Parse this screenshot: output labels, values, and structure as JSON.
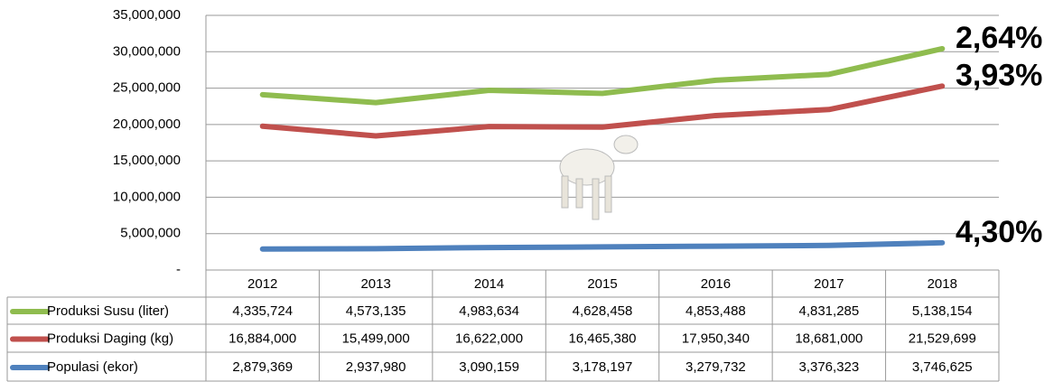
{
  "chart_data": {
    "type": "line",
    "stacked": true,
    "categories": [
      "2012",
      "2013",
      "2014",
      "2015",
      "2016",
      "2017",
      "2018"
    ],
    "series": [
      {
        "name": "Produksi Susu (liter)",
        "color": "#8fbc4f",
        "values": [
          4335724,
          4573135,
          4983634,
          4628458,
          4853488,
          4831285,
          5138154
        ],
        "value_labels": [
          "4,335,724",
          "4,573,135",
          "4,983,634",
          "4,628,458",
          "4,853,488",
          "4,831,285",
          "5,138,154"
        ],
        "annotation": "2,64%"
      },
      {
        "name": "Produksi Daging (kg)",
        "color": "#c0504d",
        "values": [
          16884000,
          15499000,
          16622000,
          16465380,
          17950340,
          18681000,
          21529699
        ],
        "value_labels": [
          "16,884,000",
          "15,499,000",
          "16,622,000",
          "16,465,380",
          "17,950,340",
          "18,681,000",
          "21,529,699"
        ],
        "annotation": "3,93%"
      },
      {
        "name": "Populasi (ekor)",
        "color": "#4f81bd",
        "values": [
          2879369,
          2937980,
          3090159,
          3178197,
          3279732,
          3376323,
          3746625
        ],
        "value_labels": [
          "2,879,369",
          "2,937,980",
          "3,090,159",
          "3,178,197",
          "3,279,732",
          "3,376,323",
          "3,746,625"
        ],
        "annotation": "4,30%"
      }
    ],
    "ylim": [
      0,
      35000000
    ],
    "yticks": [
      {
        "value": 0,
        "label": "-"
      },
      {
        "value": 5000000,
        "label": "5,000,000"
      },
      {
        "value": 10000000,
        "label": "10,000,000"
      },
      {
        "value": 15000000,
        "label": "15,000,000"
      },
      {
        "value": 20000000,
        "label": "20,000,000"
      },
      {
        "value": 25000000,
        "label": "25,000,000"
      },
      {
        "value": 30000000,
        "label": "30,000,000"
      },
      {
        "value": 35000000,
        "label": "35,000,000"
      }
    ],
    "grid": true
  }
}
